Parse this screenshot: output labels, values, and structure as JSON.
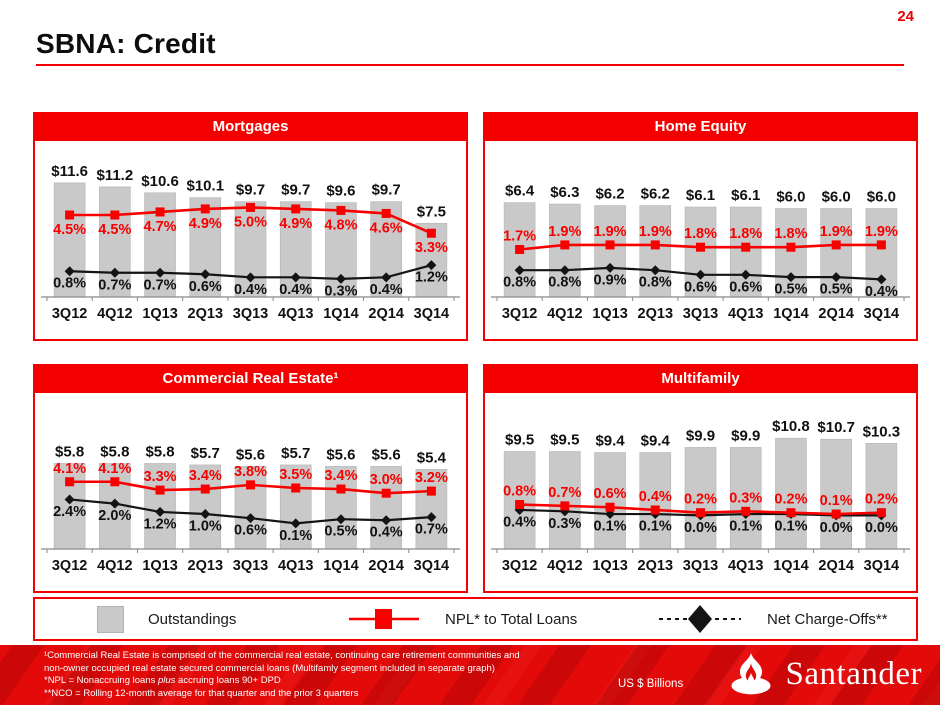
{
  "page": {
    "number": "24",
    "title": "SBNA: Credit"
  },
  "colors": {
    "accent_red": "#f40000",
    "bar_fill": "#c9c9c9",
    "bar_stroke": "#b5b5b5",
    "npl_line": "#f90000",
    "nco_line": "#141414",
    "axis": "#8a8a8a",
    "label_dark": "#111111"
  },
  "chart_data": [
    {
      "type": "bar+line",
      "title": "Mortgages",
      "ylabel": "US $ Billions",
      "categories": [
        "3Q12",
        "4Q12",
        "1Q13",
        "2Q13",
        "3Q13",
        "4Q13",
        "1Q14",
        "2Q14",
        "3Q14"
      ],
      "bars": {
        "name": "Outstandings",
        "values": [
          11.6,
          11.2,
          10.6,
          10.1,
          9.7,
          9.7,
          9.6,
          9.7,
          7.5
        ],
        "labels": [
          "$11.6",
          "$11.2",
          "$10.6",
          "$10.1",
          "$9.7",
          "$9.7",
          "$9.6",
          "$9.7",
          "$7.5"
        ]
      },
      "npl": {
        "name": "NPL* to Total Loans",
        "values": [
          4.5,
          4.5,
          4.7,
          4.9,
          5.0,
          4.9,
          4.8,
          4.6,
          3.3
        ],
        "labels": [
          "4.5%",
          "4.5%",
          "4.7%",
          "4.9%",
          "5.0%",
          "4.9%",
          "4.8%",
          "4.6%",
          "3.3%"
        ]
      },
      "nco": {
        "name": "Net Charge-Offs**",
        "values": [
          0.8,
          0.7,
          0.7,
          0.6,
          0.4,
          0.4,
          0.3,
          0.4,
          1.2
        ],
        "labels": [
          "0.8%",
          "0.7%",
          "0.7%",
          "0.6%",
          "0.4%",
          "0.4%",
          "0.3%",
          "0.4%",
          "1.2%"
        ]
      },
      "layout": {
        "bar_axis_max": 12,
        "pct_k": 15.2,
        "pct_off": 13.6,
        "npl_labels": "below",
        "grid": false
      }
    },
    {
      "type": "bar+line",
      "title": "Home Equity",
      "ylabel": "US $ Billions",
      "categories": [
        "3Q12",
        "4Q12",
        "1Q13",
        "2Q13",
        "3Q13",
        "4Q13",
        "1Q14",
        "2Q14",
        "3Q14"
      ],
      "bars": {
        "name": "Outstandings",
        "values": [
          6.4,
          6.3,
          6.2,
          6.2,
          6.1,
          6.1,
          6.0,
          6.0,
          6.0
        ],
        "labels": [
          "$6.4",
          "$6.3",
          "$6.2",
          "$6.2",
          "$6.1",
          "$6.1",
          "$6.0",
          "$6.0",
          "$6.0"
        ]
      },
      "npl": {
        "name": "NPL* to Total Loans",
        "values": [
          1.7,
          1.9,
          1.9,
          1.9,
          1.8,
          1.8,
          1.8,
          1.9,
          1.9
        ],
        "labels": [
          "1.7%",
          "1.9%",
          "1.9%",
          "1.9%",
          "1.8%",
          "1.8%",
          "1.8%",
          "1.9%",
          "1.9%"
        ]
      },
      "nco": {
        "name": "Net Charge-Offs**",
        "values": [
          0.8,
          0.8,
          0.9,
          0.8,
          0.6,
          0.6,
          0.5,
          0.5,
          0.4
        ],
        "labels": [
          "0.8%",
          "0.8%",
          "0.9%",
          "0.8%",
          "0.6%",
          "0.6%",
          "0.5%",
          "0.5%",
          "0.4%"
        ]
      },
      "layout": {
        "bar_axis_max": 8,
        "pct_k": 23,
        "pct_off": 8.4,
        "npl_labels": "above",
        "grid": false
      }
    },
    {
      "type": "bar+line",
      "title": "Commercial Real Estate¹",
      "ylabel": "US $ Billions",
      "categories": [
        "3Q12",
        "4Q12",
        "1Q13",
        "2Q13",
        "3Q13",
        "4Q13",
        "1Q14",
        "2Q14",
        "3Q14"
      ],
      "bars": {
        "name": "Outstandings",
        "values": [
          5.8,
          5.8,
          5.8,
          5.7,
          5.6,
          5.7,
          5.6,
          5.6,
          5.4
        ],
        "labels": [
          "$5.8",
          "$5.8",
          "$5.8",
          "$5.7",
          "$5.6",
          "$5.7",
          "$5.6",
          "$5.6",
          "$5.4"
        ]
      },
      "npl": {
        "name": "NPL* to Total Loans",
        "values": [
          4.1,
          4.1,
          3.3,
          3.4,
          3.8,
          3.5,
          3.4,
          3.0,
          3.2
        ],
        "labels": [
          "4.1%",
          "4.1%",
          "3.3%",
          "3.4%",
          "3.8%",
          "3.5%",
          "3.4%",
          "3.0%",
          "3.2%"
        ]
      },
      "nco": {
        "name": "Net Charge-Offs**",
        "values": [
          2.4,
          2.0,
          1.2,
          1.0,
          0.6,
          0.1,
          0.5,
          0.4,
          0.7
        ],
        "labels": [
          "2.4%",
          "2.0%",
          "1.2%",
          "1.0%",
          "0.6%",
          "0.1%",
          "0.5%",
          "0.4%",
          "0.7%"
        ]
      },
      "layout": {
        "bar_axis_max": 8,
        "pct_k": 10.4,
        "pct_off": 24.6,
        "npl_labels": "above",
        "grid": false
      }
    },
    {
      "type": "bar+line",
      "title": "Multifamily",
      "ylabel": "US $ Billions",
      "categories": [
        "3Q12",
        "4Q12",
        "1Q13",
        "2Q13",
        "3Q13",
        "4Q13",
        "1Q14",
        "2Q14",
        "3Q14"
      ],
      "bars": {
        "name": "Outstandings",
        "values": [
          9.5,
          9.5,
          9.4,
          9.4,
          9.9,
          9.9,
          10.8,
          10.7,
          10.3
        ],
        "labels": [
          "$9.5",
          "$9.5",
          "$9.4",
          "$9.4",
          "$9.9",
          "$9.9",
          "$10.8",
          "$10.7",
          "$10.3"
        ]
      },
      "npl": {
        "name": "NPL* to Total Loans",
        "values": [
          0.8,
          0.7,
          0.6,
          0.4,
          0.2,
          0.3,
          0.2,
          0.1,
          0.2
        ],
        "labels": [
          "0.8%",
          "0.7%",
          "0.6%",
          "0.4%",
          "0.2%",
          "0.3%",
          "0.2%",
          "0.1%",
          "0.2%"
        ]
      },
      "nco": {
        "name": "Net Charge-Offs**",
        "values": [
          0.4,
          0.3,
          0.1,
          0.1,
          0.0,
          0.1,
          0.1,
          0.0,
          0.0
        ],
        "labels": [
          "0.4%",
          "0.3%",
          "0.1%",
          "0.1%",
          "0.0%",
          "0.1%",
          "0.1%",
          "0.0%",
          "0.0%"
        ]
      },
      "layout": {
        "bar_axis_max": 11.5,
        "pct_k": 13.6,
        "pct_off": 33.6,
        "npl_labels": "above",
        "grid": false
      }
    }
  ],
  "legend": {
    "items": [
      {
        "label": "Outstandings"
      },
      {
        "label": "NPL* to Total Loans"
      },
      {
        "label": "Net Charge-Offs**"
      }
    ]
  },
  "footnotes": {
    "lines": [
      [
        {
          "t": "¹Commercial Real Estate is comprised of the  commercial real estate, continuing care retirement communities and"
        }
      ],
      [
        {
          "t": "non-owner occupied real estate secured commercial loans (Multifamly segment included in separate graph)"
        }
      ],
      [
        {
          "t": "*NPL = Nonaccruing loans "
        },
        {
          "t": "plus",
          "i": true
        },
        {
          "t": " accruing loans 90+ DPD"
        }
      ],
      [
        {
          "t": "**NCO = Rolling 12-month average for that quarter and the prior 3 quarters"
        }
      ]
    ]
  },
  "footer": {
    "units_label": "US $ Billions",
    "brand_wordmark": "Santander"
  }
}
